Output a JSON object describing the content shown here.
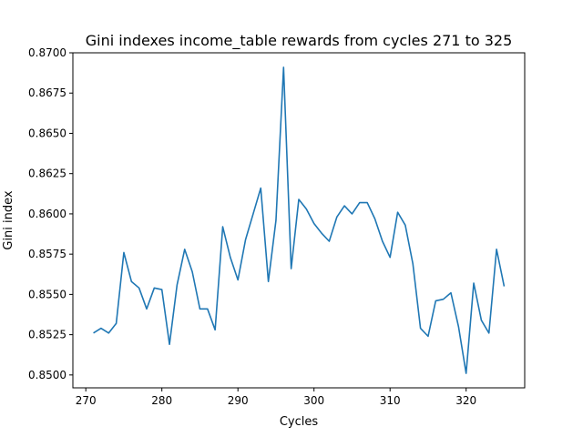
{
  "chart_data": {
    "type": "line",
    "title": "Gini indexes income_table rewards from cycles 271 to 325",
    "xlabel": "Cycles",
    "ylabel": "Gini index",
    "xlim": [
      268.3,
      327.7
    ],
    "ylim": [
      0.8492,
      0.87
    ],
    "xticks": [
      270,
      280,
      290,
      300,
      310,
      320
    ],
    "yticks": [
      0.85,
      0.8525,
      0.855,
      0.8575,
      0.86,
      0.8625,
      0.865,
      0.8675,
      0.87
    ],
    "ytick_labels": [
      "0.8500",
      "0.8525",
      "0.8550",
      "0.8575",
      "0.8600",
      "0.8625",
      "0.8650",
      "0.8675",
      "0.8700"
    ],
    "grid": false,
    "series": [
      {
        "color": "#1f77b4",
        "x": [
          271,
          272,
          273,
          274,
          275,
          276,
          277,
          278,
          279,
          280,
          281,
          282,
          283,
          284,
          285,
          286,
          287,
          288,
          289,
          290,
          291,
          292,
          293,
          294,
          295,
          296,
          297,
          298,
          299,
          300,
          301,
          302,
          303,
          304,
          305,
          306,
          307,
          308,
          309,
          310,
          311,
          312,
          313,
          314,
          315,
          316,
          317,
          318,
          319,
          320,
          321,
          322,
          323,
          324,
          325
        ],
        "y": [
          0.8526,
          0.8529,
          0.8526,
          0.8532,
          0.8576,
          0.8558,
          0.8554,
          0.8541,
          0.8554,
          0.8553,
          0.8519,
          0.8556,
          0.8578,
          0.8564,
          0.8541,
          0.8541,
          0.8528,
          0.8592,
          0.8573,
          0.8559,
          0.8584,
          0.86,
          0.8616,
          0.8558,
          0.8596,
          0.8691,
          0.8566,
          0.8609,
          0.8603,
          0.8594,
          0.8588,
          0.8583,
          0.8598,
          0.8605,
          0.86,
          0.8607,
          0.8607,
          0.8597,
          0.8583,
          0.8573,
          0.8601,
          0.8593,
          0.8569,
          0.8529,
          0.8524,
          0.8546,
          0.8547,
          0.8551,
          0.853,
          0.8501,
          0.8557,
          0.8534,
          0.8526,
          0.8578,
          0.8555
        ]
      }
    ]
  }
}
